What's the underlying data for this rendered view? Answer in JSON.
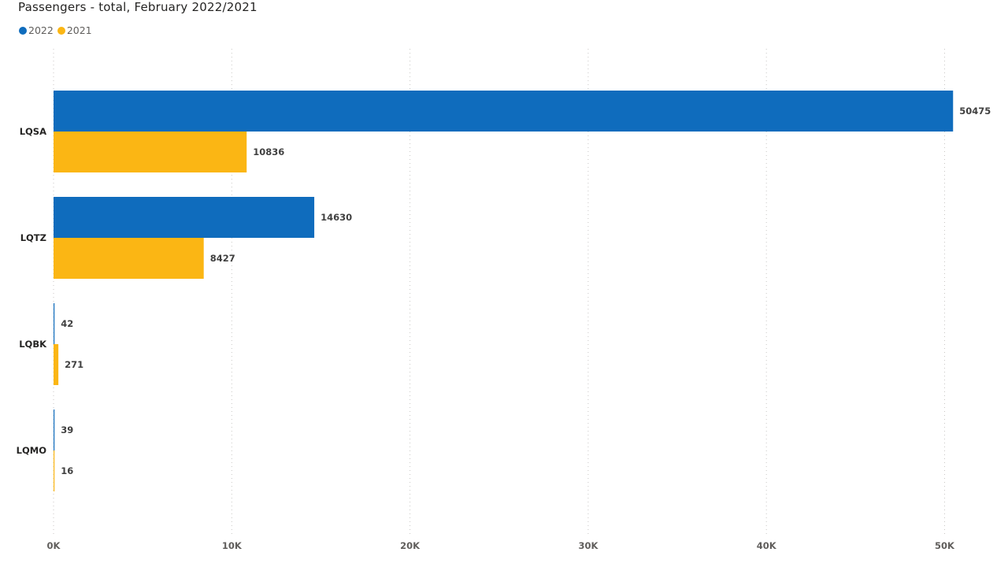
{
  "chart_data": {
    "type": "bar",
    "orientation": "horizontal",
    "title": "Passengers - total, February 2022/2021",
    "categories": [
      "LQSA",
      "LQTZ",
      "LQBK",
      "LQMO"
    ],
    "series": [
      {
        "name": "2022",
        "color": "#0f6cbd",
        "values": [
          50475,
          14630,
          42,
          39
        ]
      },
      {
        "name": "2021",
        "color": "#fbb614",
        "values": [
          10836,
          8427,
          271,
          16
        ]
      }
    ],
    "xlim": [
      0,
      50000
    ],
    "xticks": [
      0,
      10000,
      20000,
      30000,
      40000,
      50000
    ],
    "xtick_labels": [
      "0K",
      "10K",
      "20K",
      "30K",
      "40K",
      "50K"
    ],
    "xlabel": "",
    "ylabel": "",
    "grid": true,
    "legend_position": "top-left"
  }
}
